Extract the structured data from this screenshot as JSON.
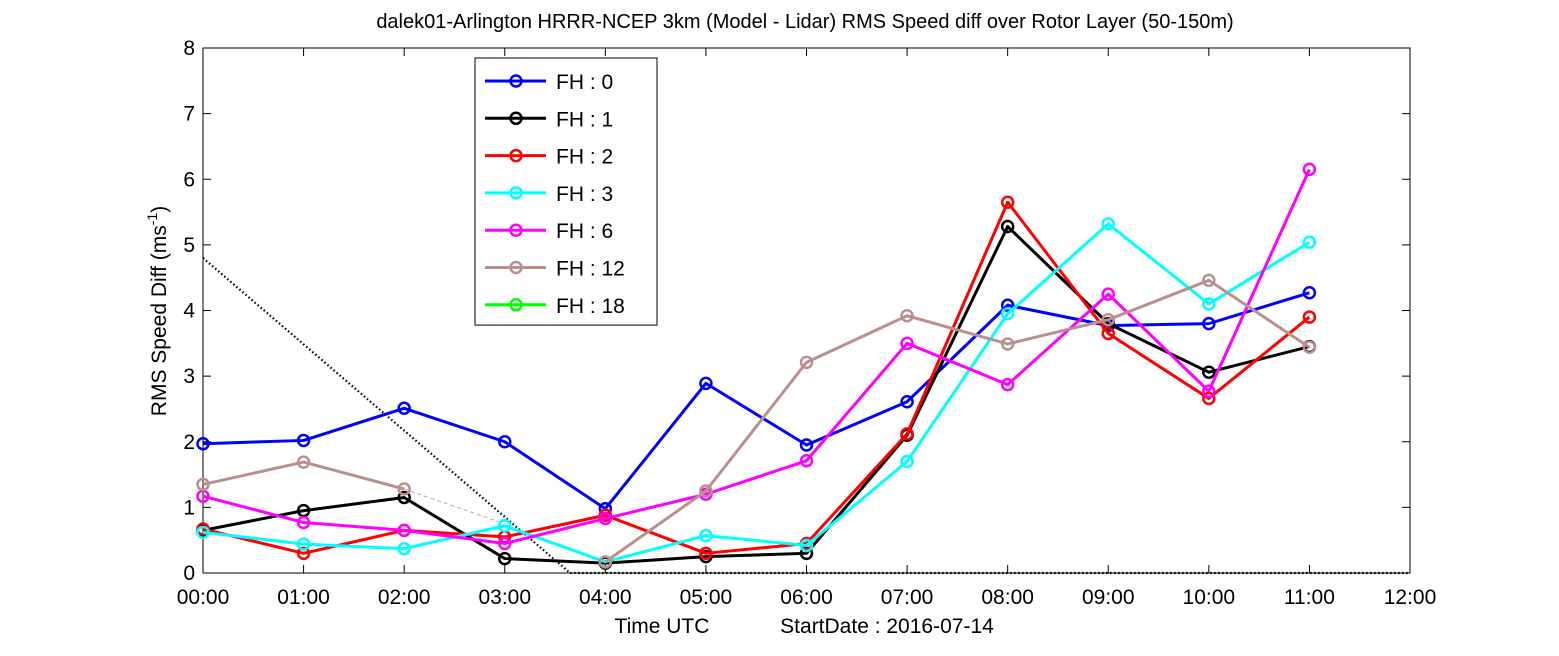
{
  "chart_data": {
    "type": "line",
    "title": "dalek01-Arlington HRRR-NCEP 3km (Model - Lidar) RMS Speed diff over Rotor Layer (50-150m)",
    "xlabel_parts": {
      "left": "Time UTC",
      "right": "StartDate : 2016-07-14"
    },
    "ylabel": {
      "text": "RMS Speed Diff (ms",
      "sup": "-1",
      "close": ")"
    },
    "xlim": [
      0,
      12
    ],
    "ylim": [
      0,
      8
    ],
    "x_ticks": [
      0,
      1,
      2,
      3,
      4,
      5,
      6,
      7,
      8,
      9,
      10,
      11,
      12
    ],
    "x_tick_labels": [
      "00:00",
      "01:00",
      "02:00",
      "03:00",
      "04:00",
      "05:00",
      "06:00",
      "07:00",
      "08:00",
      "09:00",
      "10:00",
      "11:00",
      "12:00"
    ],
    "y_ticks": [
      0,
      1,
      2,
      3,
      4,
      5,
      6,
      7,
      8
    ],
    "y_tick_labels": [
      "0",
      "1",
      "2",
      "3",
      "4",
      "5",
      "6",
      "7",
      "8"
    ],
    "grid": false,
    "legend_position": "top-left-inside",
    "series": [
      {
        "name": "FH : 0",
        "color": "#0000ff",
        "x": [
          0,
          1,
          2,
          3,
          4,
          5,
          6,
          7,
          8,
          9,
          10,
          11
        ],
        "y": [
          1.97,
          2.02,
          2.51,
          2.0,
          0.98,
          2.89,
          1.95,
          2.61,
          4.08,
          3.77,
          3.8,
          4.27
        ]
      },
      {
        "name": "FH : 1",
        "color": "#000000",
        "x": [
          0,
          1,
          2,
          3,
          4,
          5,
          6,
          7,
          8,
          9,
          10,
          11
        ],
        "y": [
          0.65,
          0.95,
          1.15,
          0.22,
          0.15,
          0.25,
          0.3,
          2.1,
          5.28,
          3.8,
          3.06,
          3.45
        ]
      },
      {
        "name": "FH : 2",
        "color": "#ff0000",
        "x": [
          0,
          1,
          2,
          3,
          4,
          5,
          6,
          7,
          8,
          9,
          10,
          11
        ],
        "y": [
          0.67,
          0.3,
          0.65,
          0.55,
          0.88,
          0.3,
          0.45,
          2.12,
          5.65,
          3.65,
          2.66,
          3.9
        ]
      },
      {
        "name": "FH : 3",
        "color": "#00ffff",
        "x": [
          0,
          1,
          2,
          3,
          4,
          5,
          6,
          7,
          8,
          9,
          10,
          11
        ],
        "y": [
          0.62,
          0.44,
          0.37,
          0.72,
          0.17,
          0.57,
          0.42,
          1.7,
          3.95,
          5.32,
          4.1,
          5.04
        ]
      },
      {
        "name": "FH : 6",
        "color": "#ff00ff",
        "x": [
          0,
          1,
          2,
          3,
          4,
          5,
          6,
          7,
          8,
          9,
          10,
          11
        ],
        "y": [
          1.17,
          0.77,
          0.65,
          0.45,
          0.83,
          1.2,
          1.71,
          3.5,
          2.87,
          4.25,
          2.77,
          6.15
        ]
      },
      {
        "name": "FH : 12",
        "color": "#bc8f8f",
        "x": [
          0,
          1,
          2,
          3,
          4,
          5,
          6,
          7,
          8,
          9,
          10,
          11
        ],
        "y": [
          1.35,
          1.69,
          1.28,
          null,
          0.17,
          1.25,
          3.21,
          3.92,
          3.49,
          3.86,
          4.46,
          3.44
        ]
      },
      {
        "name": "FH : 18",
        "color": "#00ff00",
        "x": [],
        "y": []
      }
    ],
    "extra_lines": [
      {
        "style": "dotted",
        "color": "#000000",
        "x": [
          0,
          3.65
        ],
        "y": [
          4.8,
          0
        ]
      },
      {
        "style": "dotted",
        "color": "#000000",
        "x": [
          3.65,
          12
        ],
        "y": [
          0,
          0
        ]
      },
      {
        "style": "thin",
        "color": "#bc8f8f",
        "x": [
          2,
          3
        ],
        "y": [
          1.28,
          0.75
        ]
      }
    ]
  }
}
